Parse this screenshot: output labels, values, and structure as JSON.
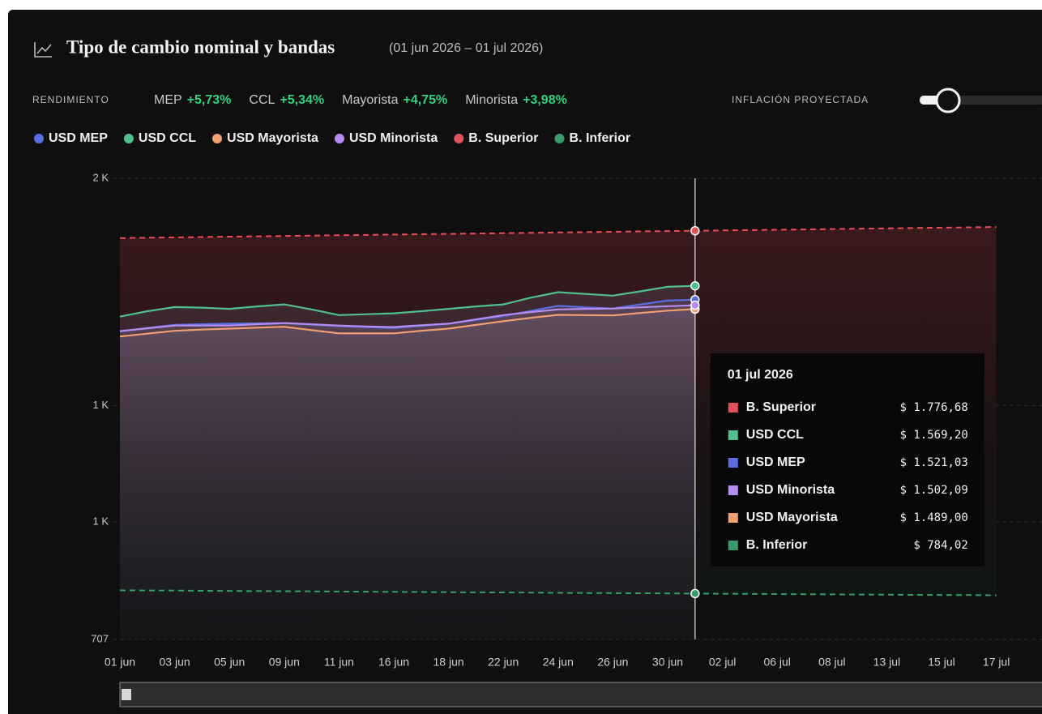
{
  "chart_data": {
    "type": "line",
    "title": "Tipo de cambio nominal y bandas",
    "subtitle": "(01 jun 2026 – 01 jul 2026)",
    "performance": {
      "label": "RENDIMIENTO",
      "items": [
        {
          "name": "MEP",
          "change": "+5,73%"
        },
        {
          "name": "CCL",
          "change": "+5,34%"
        },
        {
          "name": "Mayorista",
          "change": "+4,75%"
        },
        {
          "name": "Minorista",
          "change": "+3,98%"
        }
      ]
    },
    "inflation_label": "INFLACIÓN PROYECTADA",
    "yscale": "log",
    "grid": true,
    "ylim": [
      707,
      2000
    ],
    "yticks": [
      {
        "value": 2000,
        "label": "2 K"
      },
      {
        "value": 1198,
        "label": "1 K"
      },
      {
        "value": 921,
        "label": "1 K"
      },
      707
    ],
    "categories": [
      "01 jun",
      null,
      "03 jun",
      null,
      "05 jun",
      null,
      "09 jun",
      null,
      "11 jun",
      null,
      "16 jun",
      null,
      "18 jun",
      null,
      "22 jun",
      null,
      "24 jun",
      null,
      "26 jun",
      null,
      "30 jun",
      null,
      "02 jul",
      null,
      "06 jul",
      null,
      "08 jul",
      null,
      "13 jul",
      null,
      "15 jul",
      null,
      "17 jul"
    ],
    "series": [
      {
        "name": "USD MEP",
        "color": "#5b6ee1",
        "values": [
          1416,
          1427,
          1437,
          1439,
          1441,
          1442,
          1443,
          1438,
          1433,
          1430,
          1427,
          1434,
          1441,
          1453,
          1466,
          1483,
          1500,
          1495,
          1491,
          1505,
          1518,
          1521.03,
          null,
          null,
          null,
          null,
          null,
          null,
          null,
          null,
          null,
          null,
          null
        ]
      },
      {
        "name": "USD CCL",
        "color": "#4fbf8f",
        "values": [
          1464,
          1482,
          1496,
          1494,
          1490,
          1498,
          1505,
          1488,
          1469,
          1472,
          1475,
          1482,
          1490,
          1498,
          1505,
          1528,
          1547,
          1541,
          1535,
          1550,
          1566,
          1569.2,
          null,
          null,
          null,
          null,
          null,
          null,
          null,
          null,
          null,
          null,
          null
        ]
      },
      {
        "name": "USD Mayorista",
        "color": "#f0a070",
        "values": [
          1400,
          1409,
          1418,
          1422,
          1425,
          1428,
          1431,
          1420,
          1410,
          1410,
          1410,
          1418,
          1425,
          1437,
          1449,
          1460,
          1470,
          1469,
          1468,
          1476,
          1484,
          1489,
          null,
          null,
          null,
          null,
          null,
          null,
          null,
          null,
          null,
          null,
          null
        ]
      },
      {
        "name": "USD Minorista",
        "color": "#b58cf0",
        "values": [
          1417,
          1426,
          1435,
          1435,
          1435,
          1439,
          1443,
          1439,
          1435,
          1432,
          1430,
          1436,
          1441,
          1455,
          1469,
          1479,
          1488,
          1490,
          1491,
          1495,
          1499,
          1502.09,
          null,
          null,
          null,
          null,
          null,
          null,
          null,
          null,
          null,
          null,
          null
        ]
      },
      {
        "name": "B. Superior",
        "color": "#e0505a",
        "dashed": true,
        "values": [
          1747.7,
          1749.1,
          1750.5,
          1751.9,
          1753.3,
          1754.7,
          1756.1,
          1757.5,
          1758.9,
          1760.3,
          1761.7,
          1763.1,
          1764.5,
          1765.9,
          1767.3,
          1768.7,
          1770.1,
          1771.5,
          1772.9,
          1774.3,
          1775.7,
          1776.68,
          1778.1,
          1779.5,
          1780.9,
          1782.3,
          1783.7,
          1785.1,
          1786.5,
          1787.9,
          1789.3,
          1790.7,
          1792.1
        ]
      },
      {
        "name": "B. Inferior",
        "color": "#3a9a6a",
        "dashed": true,
        "values": [
          789.8,
          789.5,
          789.3,
          789.0,
          788.7,
          788.4,
          788.2,
          787.9,
          787.6,
          787.3,
          787.1,
          786.8,
          786.5,
          786.2,
          786.0,
          785.7,
          785.4,
          785.1,
          784.9,
          784.6,
          784.3,
          784.02,
          783.7,
          783.5,
          783.2,
          782.9,
          782.6,
          782.4,
          782.1,
          781.8,
          781.5,
          781.3,
          781.0
        ]
      }
    ],
    "tooltip": {
      "title": "01 jul 2026",
      "rows": [
        {
          "name": "B. Superior",
          "color": "#e0505a",
          "label": "$ 1.776,68"
        },
        {
          "name": "USD CCL",
          "color": "#4fbf8f",
          "label": "$ 1.569,20"
        },
        {
          "name": "USD MEP",
          "color": "#5b6ee1",
          "label": "$ 1.521,03"
        },
        {
          "name": "USD Minorista",
          "color": "#b58cf0",
          "label": "$ 1.502,09"
        },
        {
          "name": "USD Mayorista",
          "color": "#f0a070",
          "label": "$ 1.489,00"
        },
        {
          "name": "B. Inferior",
          "color": "#3a9a6a",
          "label": "$ 784,02"
        }
      ]
    }
  }
}
